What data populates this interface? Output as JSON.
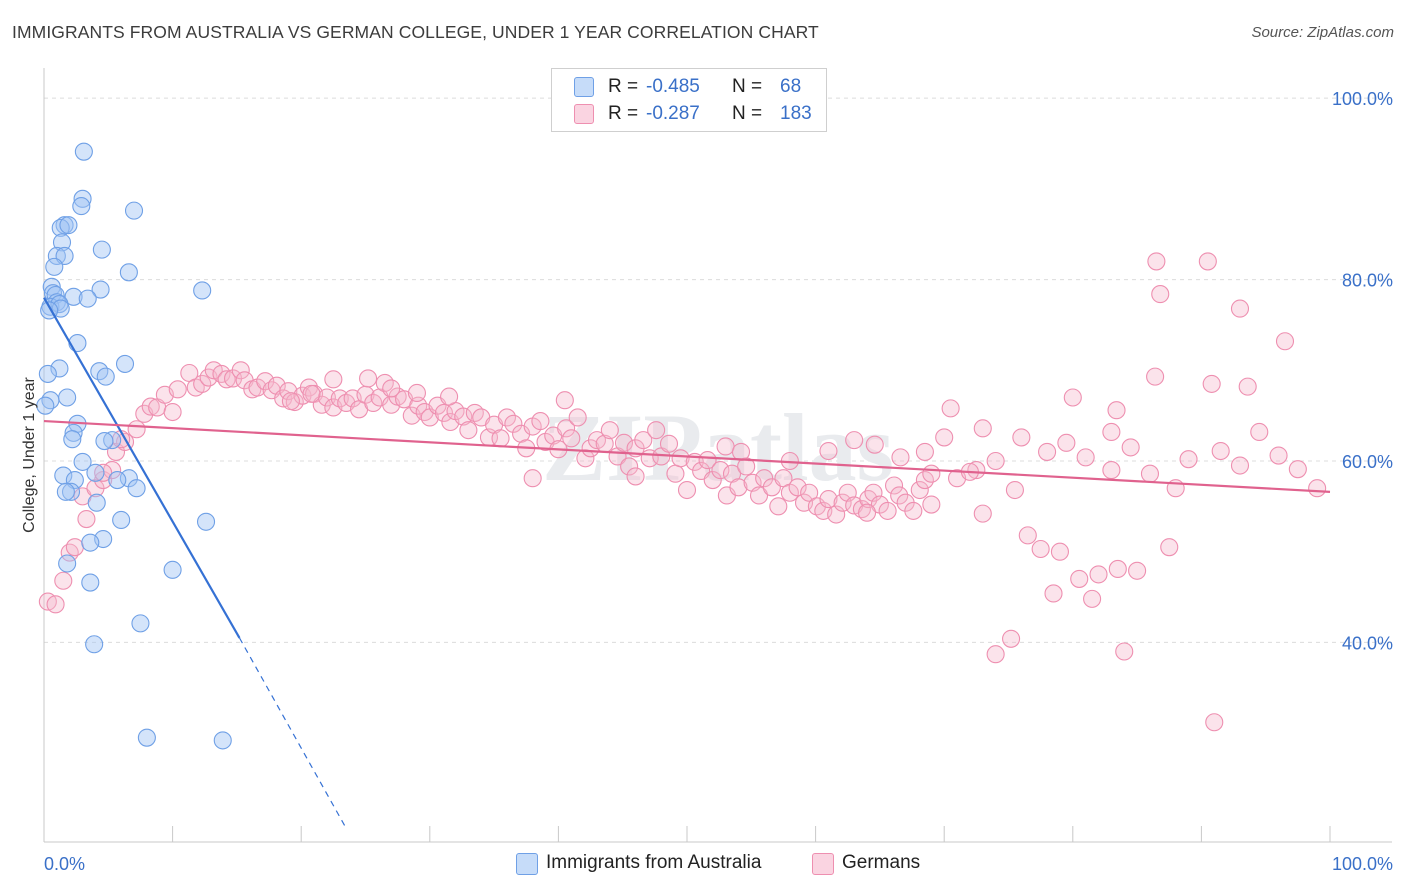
{
  "title": "IMMIGRANTS FROM AUSTRALIA VS GERMAN COLLEGE, UNDER 1 YEAR CORRELATION CHART",
  "source": "Source: ZipAtlas.com",
  "watermark": "ZIPatlas",
  "legend": {
    "rows": [
      {
        "r_label": "R =",
        "r_value": "-0.485",
        "n_label": "N =",
        "n_value": "68",
        "color": "#6fa0e6"
      },
      {
        "r_label": "R =",
        "r_value": "-0.287",
        "n_label": "N =",
        "n_value": "183",
        "color": "#f3a6c0"
      }
    ]
  },
  "chart_data": {
    "type": "scatter",
    "xlabel": "",
    "ylabel": "College, Under 1 year",
    "xlim": [
      0,
      100
    ],
    "ylim": [
      18,
      102
    ],
    "x_tick_labels": [
      {
        "value": 0,
        "label": "0.0%"
      },
      {
        "value": 100,
        "label": "100.0%"
      }
    ],
    "y_tick_labels": [
      {
        "value": 100,
        "label": "100.0%"
      },
      {
        "value": 80,
        "label": "80.0%"
      },
      {
        "value": 60,
        "label": "60.0%"
      },
      {
        "value": 40,
        "label": "40.0%"
      }
    ],
    "grid": true,
    "series": [
      {
        "name": "Immigrants from Australia",
        "color": "#6fa0e6",
        "fill": "rgba(160,196,245,0.45)",
        "trend": {
          "x0": 0,
          "y0": 78.0,
          "x1": 15.2,
          "y1": 40.5,
          "dash_to_x": 23.5,
          "dash_to_y": 19.5,
          "color": "#3571d4"
        },
        "points": [
          [
            3.1,
            94.1
          ],
          [
            3.0,
            88.9
          ],
          [
            2.9,
            88.1
          ],
          [
            7.0,
            87.6
          ],
          [
            1.6,
            86.0
          ],
          [
            1.3,
            85.7
          ],
          [
            1.9,
            86.0
          ],
          [
            1.4,
            84.1
          ],
          [
            4.5,
            83.3
          ],
          [
            1.0,
            82.6
          ],
          [
            1.6,
            82.6
          ],
          [
            0.8,
            81.4
          ],
          [
            6.6,
            80.8
          ],
          [
            12.3,
            78.8
          ],
          [
            4.4,
            78.9
          ],
          [
            0.6,
            79.2
          ],
          [
            0.7,
            78.5
          ],
          [
            0.9,
            78.3
          ],
          [
            1.0,
            77.5
          ],
          [
            2.3,
            78.1
          ],
          [
            3.4,
            77.9
          ],
          [
            0.5,
            77.0
          ],
          [
            1.2,
            77.3
          ],
          [
            1.3,
            76.8
          ],
          [
            0.4,
            76.6
          ],
          [
            2.6,
            73.0
          ],
          [
            6.3,
            70.7
          ],
          [
            1.2,
            70.2
          ],
          [
            4.3,
            69.9
          ],
          [
            4.8,
            69.3
          ],
          [
            0.3,
            69.6
          ],
          [
            1.8,
            67.0
          ],
          [
            0.5,
            66.7
          ],
          [
            0.1,
            66.1
          ],
          [
            2.6,
            64.1
          ],
          [
            2.3,
            63.1
          ],
          [
            5.3,
            62.3
          ],
          [
            2.2,
            62.4
          ],
          [
            4.7,
            62.2
          ],
          [
            3.0,
            59.9
          ],
          [
            4.0,
            58.7
          ],
          [
            1.5,
            58.4
          ],
          [
            6.6,
            58.1
          ],
          [
            2.4,
            57.9
          ],
          [
            5.7,
            57.9
          ],
          [
            7.2,
            57.0
          ],
          [
            2.1,
            56.6
          ],
          [
            1.7,
            56.6
          ],
          [
            4.1,
            55.4
          ],
          [
            12.6,
            53.3
          ],
          [
            6.0,
            53.5
          ],
          [
            4.6,
            51.4
          ],
          [
            3.6,
            51.0
          ],
          [
            1.8,
            48.7
          ],
          [
            10.0,
            48.0
          ],
          [
            3.6,
            46.6
          ],
          [
            7.5,
            42.1
          ],
          [
            3.9,
            39.8
          ],
          [
            8.0,
            29.5
          ],
          [
            13.9,
            29.2
          ]
        ]
      },
      {
        "name": "Germans",
        "color": "#ee8fb0",
        "fill": "rgba(246,184,205,0.40)",
        "trend": {
          "x0": 0,
          "y0": 64.4,
          "x1": 100,
          "y1": 56.6,
          "color": "#e0628e"
        },
        "points": [
          [
            0.3,
            44.5
          ],
          [
            0.9,
            44.2
          ],
          [
            1.5,
            46.8
          ],
          [
            2.0,
            49.9
          ],
          [
            2.4,
            50.5
          ],
          [
            3.3,
            53.6
          ],
          [
            3.0,
            56.1
          ],
          [
            4.0,
            57.0
          ],
          [
            4.6,
            57.9
          ],
          [
            5.3,
            59.0
          ],
          [
            4.6,
            58.7
          ],
          [
            5.6,
            61.0
          ],
          [
            6.3,
            62.1
          ],
          [
            7.2,
            63.5
          ],
          [
            6.0,
            62.4
          ],
          [
            7.8,
            65.2
          ],
          [
            8.3,
            66.0
          ],
          [
            8.8,
            65.9
          ],
          [
            9.4,
            67.3
          ],
          [
            10.0,
            65.4
          ],
          [
            10.4,
            67.9
          ],
          [
            11.3,
            69.7
          ],
          [
            11.8,
            68.1
          ],
          [
            12.3,
            68.5
          ],
          [
            12.8,
            69.2
          ],
          [
            13.2,
            70.0
          ],
          [
            13.8,
            69.6
          ],
          [
            14.2,
            69.0
          ],
          [
            14.7,
            69.1
          ],
          [
            15.3,
            70.0
          ],
          [
            15.6,
            68.9
          ],
          [
            16.2,
            67.9
          ],
          [
            16.6,
            68.1
          ],
          [
            17.2,
            68.8
          ],
          [
            17.7,
            67.8
          ],
          [
            18.1,
            68.3
          ],
          [
            18.6,
            66.9
          ],
          [
            19.0,
            67.7
          ],
          [
            19.5,
            66.5
          ],
          [
            20.1,
            67.2
          ],
          [
            20.6,
            68.1
          ],
          [
            21.0,
            67.4
          ],
          [
            21.6,
            66.2
          ],
          [
            22.0,
            67.0
          ],
          [
            22.5,
            65.9
          ],
          [
            23.0,
            66.9
          ],
          [
            23.5,
            66.4
          ],
          [
            24.0,
            66.9
          ],
          [
            24.5,
            65.7
          ],
          [
            25.0,
            67.3
          ],
          [
            25.6,
            66.4
          ],
          [
            26.1,
            67.0
          ],
          [
            26.5,
            68.6
          ],
          [
            27.0,
            66.2
          ],
          [
            27.5,
            67.1
          ],
          [
            28.0,
            66.8
          ],
          [
            28.6,
            65.0
          ],
          [
            29.1,
            66.1
          ],
          [
            29.6,
            65.4
          ],
          [
            30.0,
            64.8
          ],
          [
            30.6,
            66.1
          ],
          [
            31.1,
            65.3
          ],
          [
            31.6,
            64.3
          ],
          [
            32.0,
            65.5
          ],
          [
            32.6,
            64.9
          ],
          [
            33.0,
            63.4
          ],
          [
            33.5,
            65.3
          ],
          [
            34.0,
            64.8
          ],
          [
            34.6,
            62.6
          ],
          [
            35.0,
            64.0
          ],
          [
            35.5,
            62.5
          ],
          [
            36.0,
            64.8
          ],
          [
            36.5,
            64.1
          ],
          [
            37.1,
            63.0
          ],
          [
            37.5,
            61.4
          ],
          [
            38.0,
            63.8
          ],
          [
            38.6,
            64.4
          ],
          [
            39.0,
            62.1
          ],
          [
            39.6,
            62.8
          ],
          [
            40.0,
            61.3
          ],
          [
            40.6,
            63.6
          ],
          [
            41.0,
            62.5
          ],
          [
            41.5,
            64.8
          ],
          [
            42.1,
            60.3
          ],
          [
            42.5,
            61.4
          ],
          [
            43.0,
            62.3
          ],
          [
            43.6,
            61.9
          ],
          [
            44.0,
            63.4
          ],
          [
            44.6,
            60.5
          ],
          [
            45.1,
            62.0
          ],
          [
            45.5,
            59.4
          ],
          [
            46.0,
            61.4
          ],
          [
            46.6,
            62.3
          ],
          [
            47.1,
            60.3
          ],
          [
            47.6,
            63.4
          ],
          [
            48.0,
            60.5
          ],
          [
            48.6,
            61.9
          ],
          [
            49.1,
            58.6
          ],
          [
            49.5,
            60.3
          ],
          [
            50.0,
            56.8
          ],
          [
            50.6,
            59.9
          ],
          [
            51.1,
            58.9
          ],
          [
            51.6,
            60.1
          ],
          [
            52.0,
            57.9
          ],
          [
            52.6,
            59.0
          ],
          [
            53.1,
            56.2
          ],
          [
            53.5,
            58.6
          ],
          [
            54.0,
            57.1
          ],
          [
            54.6,
            59.4
          ],
          [
            55.1,
            57.6
          ],
          [
            55.6,
            56.2
          ],
          [
            56.0,
            58.1
          ],
          [
            56.6,
            57.1
          ],
          [
            57.1,
            55.0
          ],
          [
            57.5,
            58.1
          ],
          [
            58.0,
            56.5
          ],
          [
            58.6,
            57.1
          ],
          [
            59.1,
            55.4
          ],
          [
            59.5,
            56.5
          ],
          [
            60.1,
            55.0
          ],
          [
            60.6,
            54.5
          ],
          [
            61.0,
            55.8
          ],
          [
            61.6,
            54.1
          ],
          [
            62.1,
            55.4
          ],
          [
            62.5,
            56.5
          ],
          [
            63.0,
            55.1
          ],
          [
            63.6,
            54.7
          ],
          [
            64.1,
            55.8
          ],
          [
            64.5,
            56.5
          ],
          [
            65.0,
            55.2
          ],
          [
            65.6,
            54.5
          ],
          [
            66.1,
            57.3
          ],
          [
            66.5,
            56.2
          ],
          [
            67.0,
            55.4
          ],
          [
            67.6,
            54.5
          ],
          [
            68.1,
            56.8
          ],
          [
            68.5,
            57.9
          ],
          [
            69.0,
            55.2
          ],
          [
            71.0,
            58.1
          ],
          [
            72.5,
            59.0
          ],
          [
            74.0,
            60.0
          ],
          [
            76.0,
            62.6
          ],
          [
            78.0,
            61.0
          ],
          [
            79.5,
            62.0
          ],
          [
            81.0,
            60.4
          ],
          [
            83.0,
            63.2
          ],
          [
            84.5,
            61.5
          ],
          [
            86.0,
            58.6
          ],
          [
            88.0,
            57.0
          ],
          [
            89.0,
            60.2
          ],
          [
            91.5,
            61.1
          ],
          [
            93.0,
            59.5
          ],
          [
            94.5,
            63.2
          ],
          [
            96.0,
            60.6
          ],
          [
            97.5,
            59.1
          ],
          [
            99.0,
            57.0
          ],
          [
            63.0,
            62.3
          ],
          [
            64.6,
            61.8
          ],
          [
            70.0,
            62.6
          ],
          [
            72.0,
            58.8
          ],
          [
            73.0,
            54.2
          ],
          [
            75.5,
            56.8
          ],
          [
            77.5,
            50.3
          ],
          [
            79.0,
            50.0
          ],
          [
            76.5,
            51.8
          ],
          [
            80.5,
            47.0
          ],
          [
            82.0,
            47.5
          ],
          [
            83.5,
            48.1
          ],
          [
            85.0,
            47.9
          ],
          [
            87.5,
            50.5
          ],
          [
            81.5,
            44.8
          ],
          [
            78.5,
            45.4
          ],
          [
            75.2,
            40.4
          ],
          [
            74.0,
            38.7
          ],
          [
            84.0,
            39.0
          ],
          [
            91.0,
            31.2
          ],
          [
            86.5,
            82.0
          ],
          [
            90.5,
            82.0
          ],
          [
            86.8,
            78.4
          ],
          [
            93.0,
            76.8
          ],
          [
            96.5,
            73.2
          ],
          [
            90.8,
            68.5
          ],
          [
            93.6,
            68.2
          ],
          [
            86.4,
            69.3
          ],
          [
            83.4,
            65.6
          ],
          [
            83.0,
            59.0
          ],
          [
            80.0,
            67.0
          ],
          [
            70.5,
            65.8
          ],
          [
            73.0,
            63.6
          ],
          [
            68.5,
            61.0
          ],
          [
            66.6,
            60.4
          ],
          [
            69.0,
            58.6
          ],
          [
            64.0,
            54.3
          ],
          [
            53.0,
            61.6
          ],
          [
            54.2,
            61.0
          ],
          [
            58.0,
            60.0
          ],
          [
            61.0,
            61.1
          ],
          [
            46.0,
            58.3
          ],
          [
            38.0,
            58.1
          ],
          [
            40.5,
            66.7
          ],
          [
            31.5,
            67.1
          ],
          [
            29.0,
            67.5
          ],
          [
            27.0,
            68.0
          ],
          [
            25.2,
            69.1
          ],
          [
            22.5,
            69.0
          ],
          [
            20.8,
            67.4
          ],
          [
            19.2,
            66.6
          ]
        ]
      }
    ]
  }
}
